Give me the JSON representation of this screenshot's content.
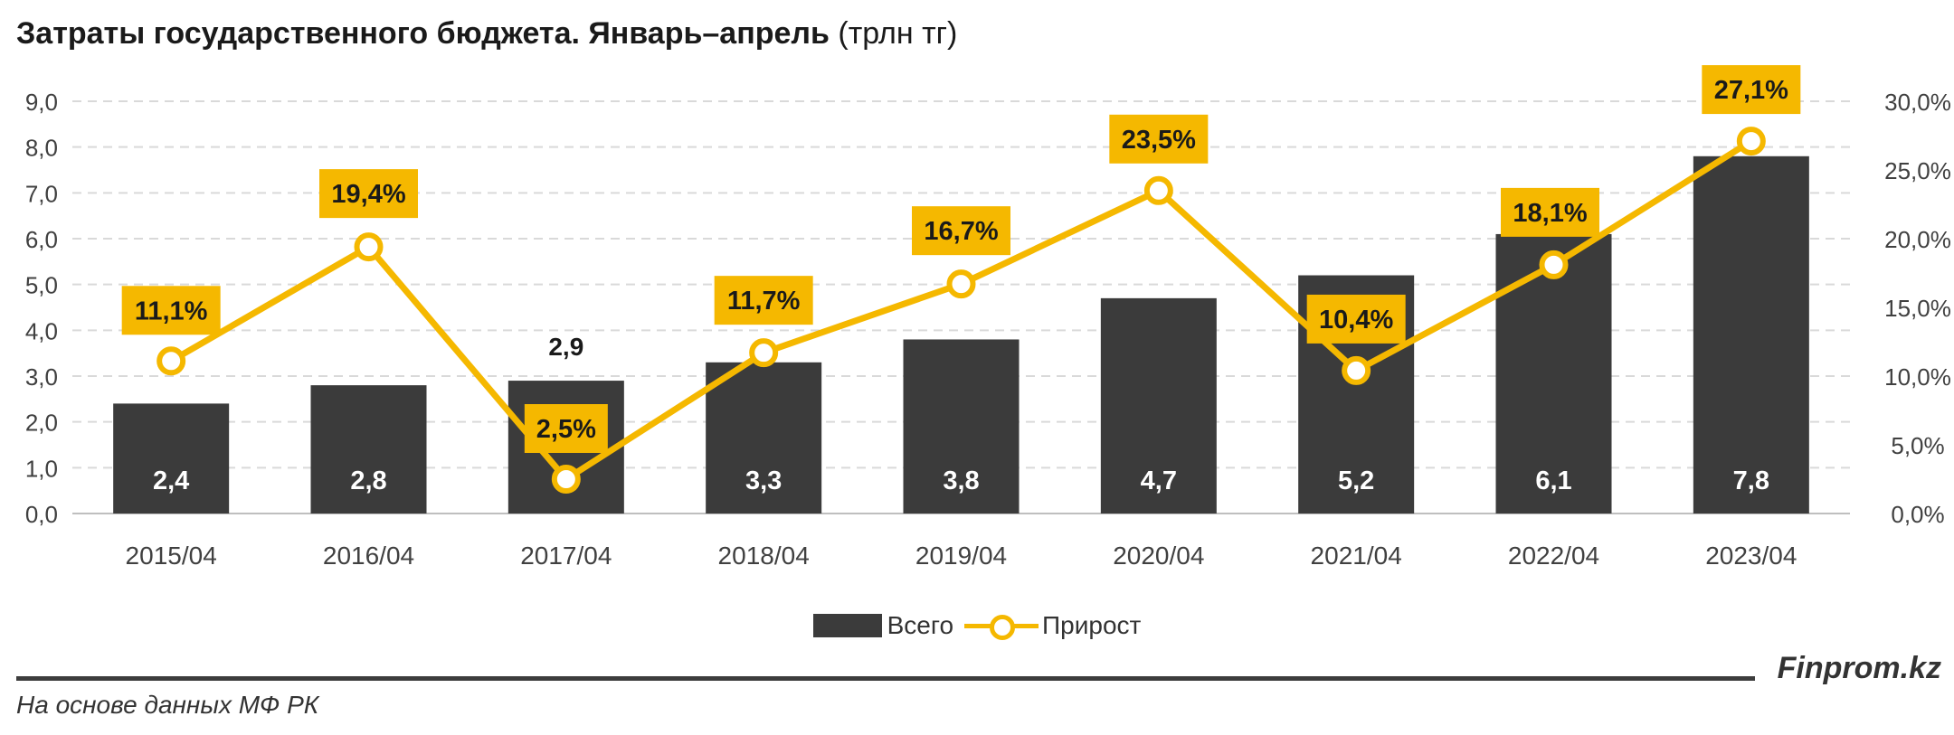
{
  "header": {
    "title_bold": "Затраты государственного бюджета. Январь–апрель",
    "title_unit": "(трлн тг)"
  },
  "footer": {
    "brand": "Finprom.kz",
    "source": "На основе данных МФ РК"
  },
  "colors": {
    "bar": "#3b3b3b",
    "line": "#f5b800",
    "label_bg": "#f5b800",
    "grid": "#d9d9d9"
  },
  "chart_data": {
    "type": "bar",
    "title": "Затраты государственного бюджета. Январь–апрель (трлн тг)",
    "categories": [
      "2015/04",
      "2016/04",
      "2017/04",
      "2018/04",
      "2019/04",
      "2020/04",
      "2021/04",
      "2022/04",
      "2023/04"
    ],
    "series": [
      {
        "name": "Всего",
        "type": "bar",
        "axis": "left",
        "values": [
          2.4,
          2.8,
          2.9,
          3.3,
          3.8,
          4.7,
          5.2,
          6.1,
          7.8
        ],
        "labels": [
          "2,4",
          "2,8",
          "2,9",
          "3,3",
          "3,8",
          "4,7",
          "5,2",
          "6,1",
          "7,8"
        ]
      },
      {
        "name": "Прирост",
        "type": "line",
        "axis": "right",
        "values": [
          11.1,
          19.4,
          2.5,
          11.7,
          16.7,
          23.5,
          10.4,
          18.1,
          27.1
        ],
        "labels": [
          "11,1%",
          "19,4%",
          "2,5%",
          "11,7%",
          "16,7%",
          "23,5%",
          "10,4%",
          "18,1%",
          "27,1%"
        ]
      }
    ],
    "y_left": {
      "min": 0,
      "max": 9,
      "ticks": [
        "0,0",
        "1,0",
        "2,0",
        "3,0",
        "4,0",
        "5,0",
        "6,0",
        "7,0",
        "8,0",
        "9,0"
      ]
    },
    "y_right": {
      "min": 0,
      "max": 30,
      "ticks": [
        "0,0%",
        "5,0%",
        "10,0%",
        "15,0%",
        "20,0%",
        "25,0%",
        "30,0%"
      ]
    },
    "grid": true,
    "legend": {
      "position": "bottom",
      "items": [
        "Всего",
        "Прирост"
      ]
    }
  }
}
